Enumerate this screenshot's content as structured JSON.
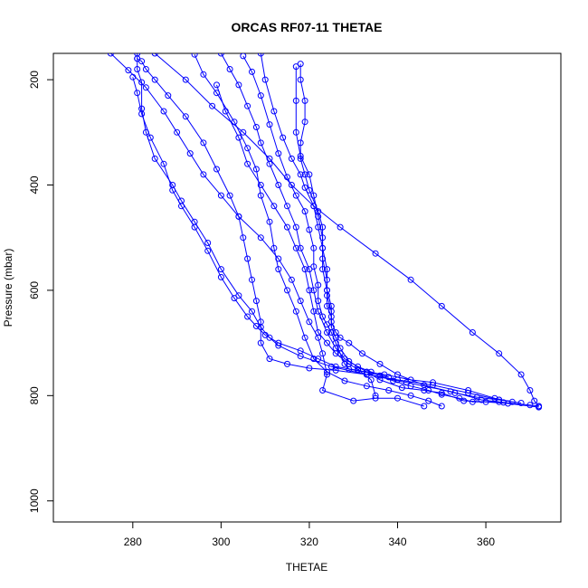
{
  "chart_data": {
    "type": "line",
    "title": "ORCAS RF07-11 THETAE",
    "xlabel": "THETAE",
    "ylabel": "Pressure (mbar)",
    "xlim": [
      262,
      377
    ],
    "ylim": [
      1040,
      150
    ],
    "y_reversed": true,
    "grid": false,
    "x_ticks": [
      280,
      300,
      320,
      340,
      360
    ],
    "y_ticks": [
      200,
      400,
      600,
      800,
      1000
    ],
    "series_color": "#0000ff",
    "series": [
      {
        "values": [
          [
            281,
            160
          ],
          [
            281,
            180
          ],
          [
            282,
            205
          ],
          [
            282,
            255
          ],
          [
            283,
            300
          ],
          [
            285,
            350
          ],
          [
            289,
            400
          ],
          [
            291,
            430
          ],
          [
            294,
            470
          ],
          [
            297,
            510
          ],
          [
            300,
            560
          ],
          [
            304,
            610
          ],
          [
            307,
            640
          ],
          [
            309,
            670
          ],
          [
            311,
            690
          ],
          [
            313,
            705
          ],
          [
            318,
            725
          ],
          [
            325,
            745
          ],
          [
            333,
            760
          ],
          [
            342,
            775
          ],
          [
            352,
            792
          ],
          [
            359,
            808
          ],
          [
            364,
            813
          ],
          [
            370,
            818
          ],
          [
            372,
            820
          ]
        ]
      },
      {
        "values": [
          [
            280,
            195
          ],
          [
            281,
            225
          ],
          [
            282,
            265
          ],
          [
            284,
            310
          ],
          [
            287,
            360
          ],
          [
            289,
            410
          ],
          [
            291,
            440
          ],
          [
            294,
            480
          ],
          [
            297,
            525
          ],
          [
            300,
            575
          ],
          [
            303,
            615
          ],
          [
            306,
            650
          ],
          [
            308,
            668
          ],
          [
            310,
            685
          ],
          [
            313,
            700
          ],
          [
            318,
            715
          ],
          [
            322,
            730
          ],
          [
            326,
            745
          ],
          [
            331,
            752
          ],
          [
            336,
            762
          ],
          [
            339,
            772
          ],
          [
            343,
            782
          ],
          [
            347,
            790
          ],
          [
            350,
            798
          ],
          [
            354,
            805
          ],
          [
            357,
            812
          ],
          [
            363,
            812
          ]
        ]
      },
      {
        "values": [
          [
            294,
            152
          ],
          [
            296,
            190
          ],
          [
            299,
            225
          ],
          [
            303,
            280
          ],
          [
            306,
            330
          ],
          [
            308,
            370
          ],
          [
            309,
            420
          ],
          [
            311,
            470
          ],
          [
            312,
            520
          ],
          [
            313,
            560
          ],
          [
            315,
            600
          ],
          [
            317,
            640
          ],
          [
            319,
            690
          ],
          [
            321,
            730
          ],
          [
            324,
            755
          ],
          [
            328,
            772
          ],
          [
            333,
            782
          ],
          [
            338,
            790
          ],
          [
            343,
            800
          ],
          [
            347,
            810
          ],
          [
            350,
            820
          ]
        ]
      },
      {
        "values": [
          [
            305,
            155
          ],
          [
            307,
            185
          ],
          [
            309,
            230
          ],
          [
            311,
            285
          ],
          [
            313,
            340
          ],
          [
            315,
            385
          ],
          [
            317,
            420
          ],
          [
            319,
            450
          ],
          [
            320,
            485
          ],
          [
            321,
            520
          ],
          [
            321,
            555
          ],
          [
            322,
            590
          ],
          [
            322,
            620
          ],
          [
            323,
            650
          ],
          [
            324,
            665
          ],
          [
            325,
            680
          ],
          [
            326,
            700
          ],
          [
            327,
            720
          ],
          [
            328,
            740
          ],
          [
            329,
            750
          ],
          [
            333,
            755
          ],
          [
            337,
            760
          ],
          [
            343,
            770
          ],
          [
            348,
            775
          ],
          [
            356,
            790
          ],
          [
            362,
            805
          ],
          [
            366,
            812
          ]
        ]
      },
      {
        "values": [
          [
            309,
            150
          ],
          [
            310,
            200
          ],
          [
            312,
            260
          ],
          [
            314,
            310
          ],
          [
            316,
            350
          ],
          [
            318,
            380
          ],
          [
            319,
            405
          ],
          [
            321,
            440
          ],
          [
            322,
            480
          ],
          [
            323,
            520
          ],
          [
            324,
            560
          ],
          [
            324,
            600
          ],
          [
            325,
            630
          ],
          [
            325,
            660
          ],
          [
            326,
            680
          ],
          [
            327,
            690
          ],
          [
            329,
            700
          ],
          [
            332,
            720
          ],
          [
            336,
            740
          ],
          [
            340,
            760
          ],
          [
            346,
            780
          ],
          [
            353,
            795
          ],
          [
            358,
            803
          ],
          [
            363,
            808
          ],
          [
            368,
            814
          ]
        ]
      },
      {
        "values": [
          [
            317,
            175
          ],
          [
            317,
            240
          ],
          [
            317,
            300
          ],
          [
            318,
            345
          ],
          [
            320,
            380
          ],
          [
            321,
            420
          ],
          [
            322,
            460
          ],
          [
            323,
            500
          ],
          [
            323,
            540
          ],
          [
            324,
            580
          ],
          [
            324,
            610
          ],
          [
            325,
            640
          ],
          [
            325,
            670
          ],
          [
            326,
            690
          ],
          [
            327,
            710
          ],
          [
            329,
            735
          ],
          [
            333,
            755
          ],
          [
            336,
            770
          ],
          [
            341,
            785
          ],
          [
            346,
            790
          ],
          [
            350,
            795
          ],
          [
            355,
            810
          ],
          [
            360,
            812
          ],
          [
            365,
            815
          ],
          [
            372,
            822
          ]
        ]
      },
      {
        "values": [
          [
            299,
            210
          ],
          [
            301,
            260
          ],
          [
            304,
            310
          ],
          [
            306,
            360
          ],
          [
            309,
            400
          ],
          [
            312,
            440
          ],
          [
            315,
            480
          ],
          [
            317,
            520
          ],
          [
            319,
            560
          ],
          [
            320,
            600
          ],
          [
            321,
            640
          ],
          [
            322,
            680
          ],
          [
            324,
            700
          ],
          [
            326,
            720
          ],
          [
            329,
            740
          ],
          [
            331,
            750
          ],
          [
            334,
            770
          ],
          [
            335,
            800
          ]
        ]
      },
      {
        "values": [
          [
            275,
            150
          ],
          [
            279,
            182
          ],
          [
            283,
            215
          ],
          [
            287,
            260
          ],
          [
            290,
            300
          ],
          [
            293,
            340
          ],
          [
            296,
            380
          ],
          [
            300,
            420
          ],
          [
            304,
            460
          ],
          [
            309,
            500
          ],
          [
            313,
            540
          ],
          [
            316,
            580
          ],
          [
            318,
            620
          ],
          [
            320,
            660
          ],
          [
            322,
            690
          ],
          [
            323,
            720
          ],
          [
            324,
            760
          ],
          [
            323,
            790
          ],
          [
            330,
            810
          ],
          [
            335,
            805
          ],
          [
            340,
            805
          ],
          [
            346,
            820
          ]
        ]
      },
      {
        "values": [
          [
            285,
            150
          ],
          [
            292,
            200
          ],
          [
            298,
            250
          ],
          [
            305,
            300
          ],
          [
            311,
            350
          ],
          [
            316,
            400
          ],
          [
            321,
            440
          ],
          [
            327,
            480
          ],
          [
            335,
            530
          ],
          [
            343,
            580
          ],
          [
            350,
            630
          ],
          [
            357,
            680
          ],
          [
            363,
            720
          ],
          [
            368,
            760
          ],
          [
            370,
            790
          ],
          [
            371,
            810
          ],
          [
            372,
            820
          ]
        ]
      },
      {
        "values": [
          [
            318,
            170
          ],
          [
            318,
            200
          ],
          [
            319,
            240
          ],
          [
            319,
            280
          ],
          [
            318,
            320
          ],
          [
            318,
            350
          ],
          [
            319,
            380
          ],
          [
            320,
            410
          ],
          [
            322,
            450
          ],
          [
            323,
            480
          ],
          [
            323,
            520
          ],
          [
            323,
            560
          ],
          [
            324,
            600
          ],
          [
            324,
            630
          ],
          [
            325,
            650
          ],
          [
            325,
            670
          ]
        ]
      },
      {
        "values": [
          [
            300,
            150
          ],
          [
            302,
            180
          ],
          [
            304,
            210
          ],
          [
            306,
            250
          ],
          [
            308,
            290
          ],
          [
            309,
            320
          ],
          [
            311,
            360
          ],
          [
            313,
            400
          ],
          [
            315,
            440
          ],
          [
            317,
            480
          ],
          [
            318,
            520
          ],
          [
            320,
            560
          ],
          [
            321,
            600
          ],
          [
            322,
            640
          ],
          [
            324,
            680
          ],
          [
            326,
            710
          ],
          [
            328,
            730
          ],
          [
            331,
            745
          ],
          [
            334,
            755
          ],
          [
            338,
            765
          ]
        ]
      },
      {
        "values": [
          [
            281,
            150
          ],
          [
            281,
            160
          ],
          [
            282,
            165
          ],
          [
            283,
            180
          ],
          [
            285,
            200
          ],
          [
            288,
            230
          ],
          [
            292,
            270
          ],
          [
            296,
            320
          ],
          [
            299,
            370
          ],
          [
            302,
            420
          ],
          [
            304,
            460
          ],
          [
            305,
            500
          ],
          [
            306,
            540
          ],
          [
            307,
            580
          ],
          [
            308,
            620
          ],
          [
            309,
            660
          ],
          [
            309,
            700
          ],
          [
            311,
            730
          ],
          [
            315,
            740
          ],
          [
            320,
            748
          ],
          [
            326,
            752
          ],
          [
            333,
            760
          ],
          [
            340,
            770
          ],
          [
            348,
            780
          ],
          [
            356,
            795
          ],
          [
            363,
            808
          ]
        ]
      }
    ]
  }
}
